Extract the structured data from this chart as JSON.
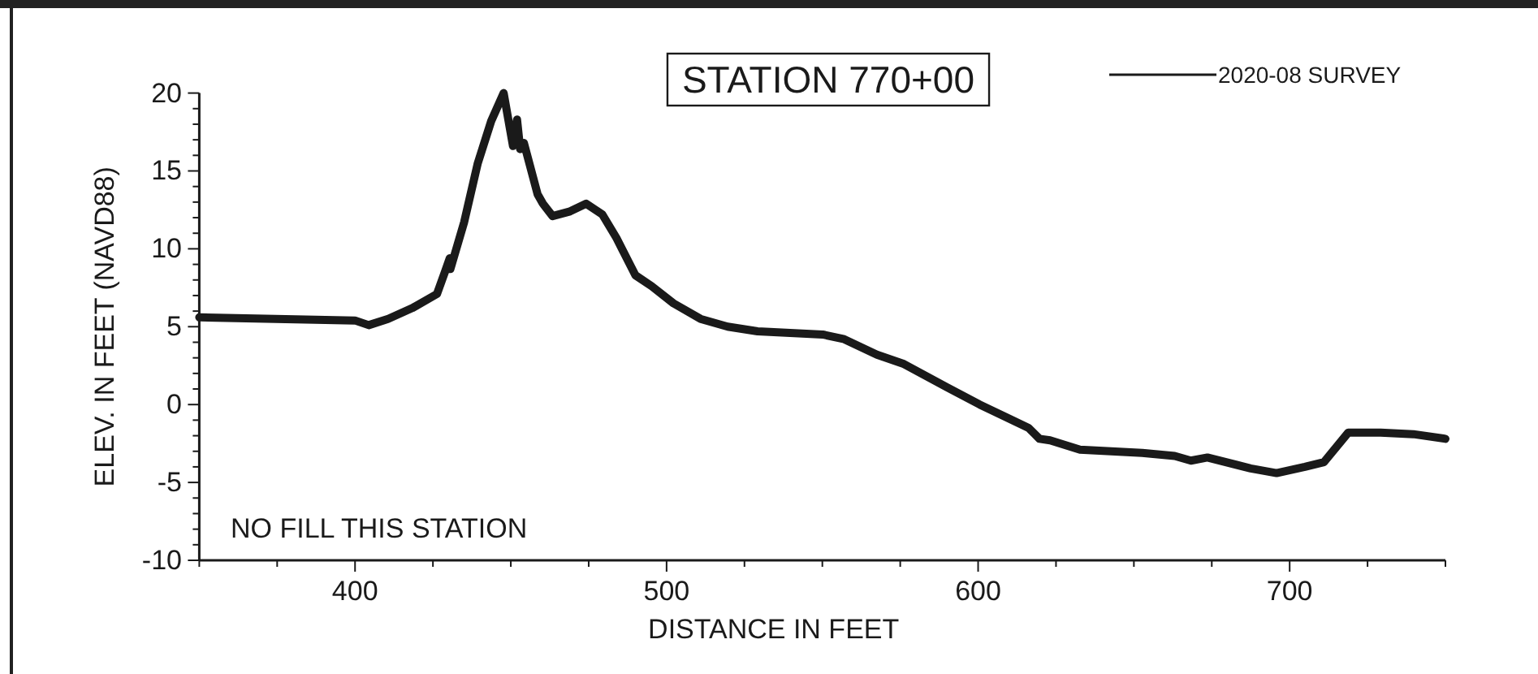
{
  "chart_data": {
    "type": "line",
    "title": "STATION 770+00",
    "xlabel": "DISTANCE IN FEET",
    "ylabel": "ELEV. IN FEET (NAVD88)",
    "annotations": [
      "NO FILL THIS STATION"
    ],
    "legend": "top right",
    "marker": "none",
    "line_style": "solid",
    "grid": false,
    "xlim": [
      350,
      750
    ],
    "ylim": [
      -10,
      20
    ],
    "xticks": [
      {
        "value": 350,
        "label": null
      },
      {
        "value": 375,
        "label": null
      },
      400,
      {
        "value": 425,
        "label": null
      },
      {
        "value": 450,
        "label": null
      },
      {
        "value": 475,
        "label": null
      },
      500,
      {
        "value": 525,
        "label": null
      },
      {
        "value": 550,
        "label": null
      },
      {
        "value": 575,
        "label": null
      },
      600,
      {
        "value": 625,
        "label": null
      },
      {
        "value": 650,
        "label": null
      },
      {
        "value": 675,
        "label": null
      },
      700,
      {
        "value": 725,
        "label": null
      },
      {
        "value": 750,
        "label": null
      }
    ],
    "yticks": [
      -10,
      {
        "value": -9,
        "label": null
      },
      {
        "value": -8,
        "label": null
      },
      {
        "value": -7,
        "label": null
      },
      {
        "value": -6,
        "label": null
      },
      -5,
      {
        "value": -4,
        "label": null
      },
      {
        "value": -3,
        "label": null
      },
      {
        "value": -2,
        "label": null
      },
      {
        "value": -1,
        "label": null
      },
      0,
      {
        "value": 1,
        "label": null
      },
      {
        "value": 2,
        "label": null
      },
      {
        "value": 3,
        "label": null
      },
      {
        "value": 4,
        "label": null
      },
      5,
      {
        "value": 6,
        "label": null
      },
      {
        "value": 7,
        "label": null
      },
      {
        "value": 8,
        "label": null
      },
      {
        "value": 9,
        "label": null
      },
      10,
      {
        "value": 11,
        "label": null
      },
      {
        "value": 12,
        "label": null
      },
      {
        "value": 13,
        "label": null
      },
      {
        "value": 14,
        "label": null
      },
      15,
      {
        "value": 16,
        "label": null
      },
      {
        "value": 17,
        "label": null
      },
      {
        "value": 18,
        "label": null
      },
      {
        "value": 19,
        "label": null
      },
      20
    ],
    "series": [
      {
        "name": "2020-08 SURVEY",
        "color": "#1a1a1a",
        "x": [
          350,
          400,
          404.4,
          410.6,
          418.4,
          426.3,
          429,
          430.4,
          430.6,
          435,
          439.4,
          443.7,
          447.7,
          450.7,
          452,
          453,
          454.2,
          458.6,
          460.3,
          463.4,
          469,
          474.2,
          479.4,
          483.9,
          490,
          495.2,
          502.2,
          510.9,
          519.6,
          529.2,
          550.1,
          557,
          567.5,
          576.2,
          590.1,
          600.5,
          616.2,
          619.7,
          623.1,
          632.7,
          652.7,
          663.1,
          668.3,
          673.6,
          687.5,
          695.8,
          704.9,
          711,
          718.8,
          729.2,
          739.7,
          750
        ],
        "values": [
          5.6,
          5.4,
          5.1,
          5.5,
          6.2,
          7.1,
          8.6,
          9.4,
          8.7,
          11.7,
          15.5,
          18.2,
          20.0,
          16.6,
          18.3,
          16.4,
          16.8,
          13.5,
          12.9,
          12.1,
          12.4,
          12.9,
          12.2,
          10.7,
          8.3,
          7.6,
          6.5,
          5.5,
          5.0,
          4.7,
          4.5,
          4.2,
          3.2,
          2.6,
          1.1,
          0.0,
          -1.5,
          -2.2,
          -2.3,
          -2.9,
          -3.1,
          -3.3,
          -3.6,
          -3.4,
          -4.1,
          -4.4,
          -4.0,
          -3.7,
          -1.8,
          -1.8,
          -1.9,
          -2.2
        ]
      }
    ]
  }
}
